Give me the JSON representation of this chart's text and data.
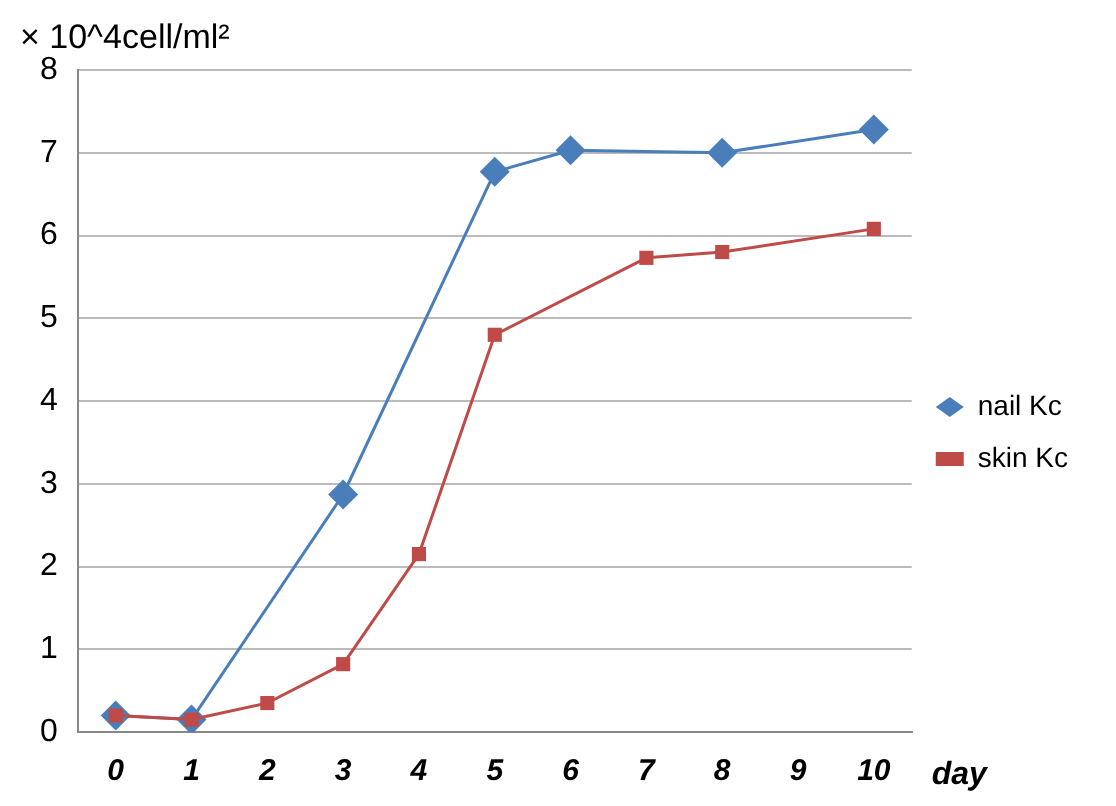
{
  "chart_data": {
    "type": "line",
    "ylabel": "× 10^4cell/ml²",
    "xlabel": "day",
    "categories": [
      "0",
      "1",
      "2",
      "3",
      "4",
      "5",
      "6",
      "7",
      "8",
      "9",
      "10"
    ],
    "series": [
      {
        "name": "nail Kc",
        "color": "#4a7ebb",
        "marker": "diamond",
        "values": [
          0.2,
          0.15,
          null,
          2.87,
          null,
          6.77,
          7.03,
          null,
          7.0,
          null,
          7.28
        ]
      },
      {
        "name": "skin Kc",
        "color": "#be4b48",
        "marker": "square",
        "values": [
          0.2,
          0.15,
          0.35,
          0.82,
          2.15,
          4.8,
          null,
          5.73,
          5.8,
          null,
          6.08
        ]
      }
    ],
    "ylim": [
      0,
      8
    ],
    "yticks": [
      0,
      1,
      2,
      3,
      4,
      5,
      6,
      7,
      8
    ],
    "grid": "y",
    "legend": "right"
  }
}
